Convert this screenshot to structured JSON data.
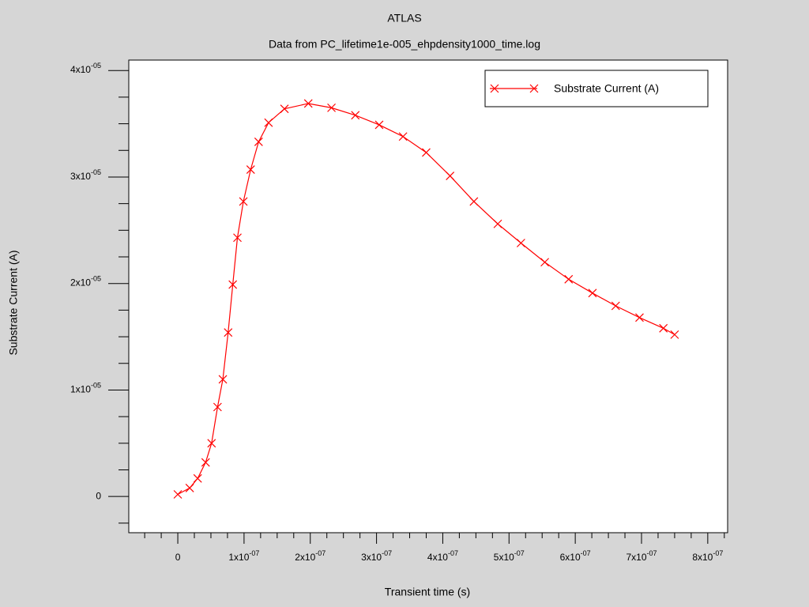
{
  "chart_data": {
    "type": "line",
    "title": "ATLAS",
    "subtitle": "Data from PC_lifetime1e-005_ehpdensity1000_time.log",
    "x_label": "Transient time (s)",
    "y_label": "Substrate Current (A)",
    "legend": "upper right",
    "xlim": [
      -7.4e-08,
      8.3e-07
    ],
    "ylim": [
      -3.4e-06,
      4.098e-05
    ],
    "xticks": [
      0,
      {
        "value": 1e-07,
        "label": "1x10-07"
      },
      {
        "value": 2e-07,
        "label": "2x10-07"
      },
      {
        "value": 3e-07,
        "label": "3x10-07"
      },
      {
        "value": 4e-07,
        "label": "4x10-07"
      },
      {
        "value": 5e-07,
        "label": "5x10-07"
      },
      {
        "value": 6e-07,
        "label": "6x10-07"
      },
      {
        "value": 7e-07,
        "label": "7x10-07"
      },
      {
        "value": 8e-07,
        "label": "8x10-07"
      }
    ],
    "xminorticks": [
      -5e-08,
      -2.5e-08,
      2.5e-08,
      5e-08,
      7.5e-08,
      1.25e-07,
      1.5e-07,
      1.75e-07,
      2.25e-07,
      2.5e-07,
      2.75e-07,
      3.25e-07,
      3.5e-07,
      3.75e-07,
      4.25e-07,
      4.5e-07,
      4.75e-07,
      5.25e-07,
      5.5e-07,
      5.75e-07,
      6.25e-07,
      6.5e-07,
      6.75e-07,
      7.25e-07,
      7.5e-07,
      7.75e-07,
      8.25e-07
    ],
    "yticks": [
      0,
      {
        "value": 1e-05,
        "label": "1x10-05"
      },
      {
        "value": 2e-05,
        "label": "2x10-05"
      },
      {
        "value": 3e-05,
        "label": "3x10-05"
      },
      {
        "value": 4e-05,
        "label": "4x10-05"
      }
    ],
    "yminorticks": [
      -2.5e-06,
      2.5e-06,
      5e-06,
      7.5e-06,
      1.25e-05,
      1.5e-05,
      1.75e-05,
      2.25e-05,
      2.5e-05,
      2.75e-05,
      3.25e-05,
      3.5e-05,
      3.75e-05
    ],
    "x": [
      0,
      1.8e-08,
      3e-08,
      4.2e-08,
      5.1e-08,
      6e-08,
      6.8e-08,
      7.6e-08,
      8.3e-08,
      9e-08,
      9.9e-08,
      1.1e-07,
      1.22e-07,
      1.37e-07,
      1.61e-07,
      1.97e-07,
      2.32e-07,
      2.68e-07,
      3.04e-07,
      3.4e-07,
      3.75e-07,
      4.11e-07,
      4.47e-07,
      4.83e-07,
      5.18e-07,
      5.54e-07,
      5.9e-07,
      6.26e-07,
      6.61e-07,
      6.97e-07,
      7.33e-07,
      7.5e-07
    ],
    "series": [
      {
        "name": "Substrate Current (A)",
        "color": "#ff0000",
        "values": [
          2e-07,
          8e-07,
          1.7e-06,
          3.2e-06,
          5e-06,
          8.4e-06,
          1.1e-05,
          1.54e-05,
          1.99e-05,
          2.43e-05,
          2.77e-05,
          3.07e-05,
          3.33e-05,
          3.51e-05,
          3.64e-05,
          3.69e-05,
          3.65e-05,
          3.58e-05,
          3.49e-05,
          3.38e-05,
          3.23e-05,
          3.01e-05,
          2.77e-05,
          2.56e-05,
          2.38e-05,
          2.2e-05,
          2.04e-05,
          1.91e-05,
          1.79e-05,
          1.68e-05,
          1.58e-05,
          1.52e-05
        ]
      }
    ]
  }
}
